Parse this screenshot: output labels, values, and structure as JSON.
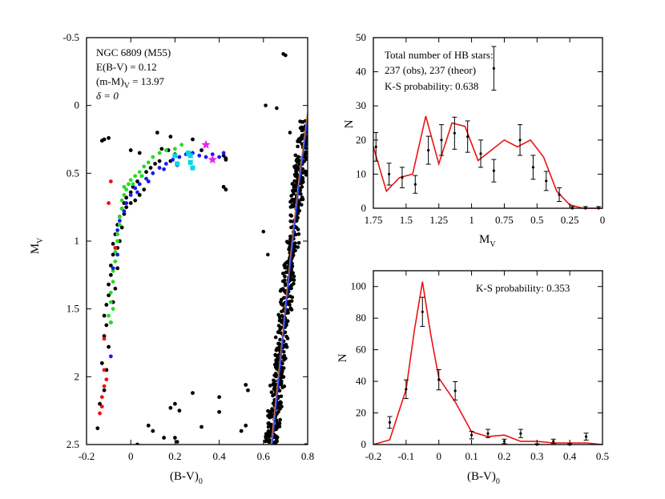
{
  "chart_data": [
    {
      "id": "cmd",
      "type": "scatter",
      "xlabel": "(B-V)",
      "xlabel_sub": "0",
      "ylabel": "M",
      "ylabel_sub": "V",
      "xlim": [
        -0.2,
        0.8
      ],
      "ylim": [
        2.5,
        -0.5
      ],
      "y_inverted": true,
      "xticks": [
        -0.2,
        0,
        0.2,
        0.4,
        0.6,
        0.8
      ],
      "xtick_labels": [
        "-0.2",
        "0",
        "0.2",
        "0.4",
        "0.6",
        "0.8"
      ],
      "yticks": [
        -0.5,
        0,
        0.5,
        1,
        1.5,
        2,
        2.5
      ],
      "ytick_labels": [
        "-0.5",
        "0",
        "0.5",
        "1",
        "1.5",
        "2",
        "2.5"
      ],
      "annotation_lines": [
        "NGC 6809 (M55)",
        "E(B-V)  = 0.12",
        "(m-M)",
        "V",
        " = 13.97",
        "δ = 0"
      ],
      "colors": {
        "black": "#000000",
        "green": "#22dd22",
        "blue": "#1a1aee",
        "red": "#ee1111",
        "cyan": "#00d8e8",
        "magenta": "#ee22ee",
        "track_orange": "#e0782a",
        "track_blue": "#2244ff"
      },
      "series": [
        {
          "name": "HB black",
          "color": "black",
          "points": [
            [
              -0.12,
              1.7
            ],
            [
              -0.11,
              1.62
            ],
            [
              -0.12,
              1.55
            ],
            [
              -0.11,
              1.47
            ],
            [
              -0.1,
              1.4
            ],
            [
              -0.1,
              1.32
            ],
            [
              -0.09,
              1.25
            ],
            [
              -0.09,
              1.18
            ],
            [
              -0.08,
              1.1
            ],
            [
              -0.08,
              1.02
            ],
            [
              -0.07,
              0.95
            ],
            [
              -0.06,
              0.88
            ],
            [
              -0.05,
              0.82
            ],
            [
              -0.04,
              0.76
            ],
            [
              -0.03,
              0.72
            ],
            [
              -0.02,
              0.68
            ],
            [
              0.0,
              0.64
            ],
            [
              0.01,
              0.6
            ],
            [
              0.03,
              0.56
            ],
            [
              0.05,
              0.52
            ],
            [
              0.07,
              0.49
            ],
            [
              0.09,
              0.46
            ],
            [
              0.11,
              0.43
            ],
            [
              0.13,
              0.41
            ],
            [
              -0.03,
              0.8
            ],
            [
              -0.02,
              0.75
            ],
            [
              0.0,
              0.72
            ],
            [
              0.02,
              0.7
            ],
            [
              0.04,
              0.66
            ],
            [
              0.06,
              0.62
            ],
            [
              -0.09,
              1.6
            ],
            [
              -0.08,
              1.45
            ],
            [
              -0.07,
              1.35
            ],
            [
              -0.06,
              1.2
            ],
            [
              -0.05,
              1.0
            ],
            [
              -0.06,
              1.05
            ],
            [
              -0.04,
              0.9
            ],
            [
              0.14,
              0.32
            ],
            [
              0.17,
              0.33
            ],
            [
              0.2,
              0.36
            ],
            [
              0.18,
              0.41
            ],
            [
              0.43,
              0.4
            ],
            [
              0.42,
              0.6
            ],
            [
              0.43,
              0.62
            ],
            [
              0.32,
              0.33
            ],
            [
              -0.11,
              1.95
            ],
            [
              -0.12,
              2.1
            ],
            [
              -0.14,
              2.2
            ],
            [
              -0.15,
              2.38
            ],
            [
              -0.1,
              1.78
            ],
            [
              -0.13,
              1.9
            ],
            [
              0.2,
              2.2
            ],
            [
              0.18,
              2.23
            ],
            [
              0.22,
              2.25
            ],
            [
              0.15,
              2.45
            ],
            [
              0.2,
              2.45
            ],
            [
              0.21,
              2.48
            ],
            [
              0.32,
              2.37
            ],
            [
              0.28,
              2.12
            ],
            [
              0.4,
              2.15
            ],
            [
              0.52,
              2.06
            ],
            [
              0.53,
              2.1
            ],
            [
              0.52,
              2.36
            ],
            [
              0.4,
              2.26
            ],
            [
              0.1,
              2.4
            ],
            [
              0.08,
              2.36
            ],
            [
              0.03,
              2.5
            ],
            [
              0.5,
              2.4
            ],
            [
              -0.12,
              0.25
            ],
            [
              -0.13,
              0.26
            ],
            [
              -0.1,
              0.24
            ],
            [
              0.18,
              0.23
            ],
            [
              0.12,
              0.2
            ],
            [
              0.0,
              0.33
            ],
            [
              0.04,
              0.35
            ],
            [
              0.42,
              0.37
            ],
            [
              0.43,
              0.39
            ],
            [
              0.28,
              0.25
            ]
          ]
        },
        {
          "name": "HB green",
          "color": "green",
          "points": [
            [
              -0.09,
              1.45
            ],
            [
              -0.09,
              1.38
            ],
            [
              -0.08,
              1.3
            ],
            [
              -0.08,
              1.22
            ],
            [
              -0.07,
              1.15
            ],
            [
              -0.07,
              1.08
            ],
            [
              -0.06,
              1.0
            ],
            [
              -0.06,
              0.95
            ],
            [
              -0.05,
              0.88
            ],
            [
              -0.05,
              0.82
            ],
            [
              -0.04,
              0.76
            ],
            [
              -0.04,
              0.7
            ],
            [
              -0.03,
              0.66
            ],
            [
              -0.02,
              0.62
            ],
            [
              -0.01,
              0.58
            ],
            [
              0.0,
              0.55
            ],
            [
              0.02,
              0.52
            ],
            [
              0.04,
              0.49
            ],
            [
              0.06,
              0.45
            ],
            [
              0.08,
              0.42
            ],
            [
              0.1,
              0.38
            ],
            [
              0.13,
              0.35
            ],
            [
              0.16,
              0.33
            ],
            [
              0.2,
              0.32
            ],
            [
              0.23,
              0.29
            ],
            [
              -0.1,
              1.55
            ],
            [
              -0.09,
              1.6
            ],
            [
              -0.08,
              1.5
            ],
            [
              -0.03,
              0.6
            ],
            [
              0.01,
              0.58
            ],
            [
              0.05,
              0.52
            ]
          ]
        },
        {
          "name": "HB blue",
          "color": "blue",
          "points": [
            [
              -0.08,
              1.2
            ],
            [
              -0.07,
              1.05
            ],
            [
              -0.06,
              0.92
            ],
            [
              -0.05,
              0.85
            ],
            [
              -0.03,
              0.78
            ],
            [
              -0.02,
              0.72
            ],
            [
              0.0,
              0.66
            ],
            [
              0.02,
              0.61
            ],
            [
              0.04,
              0.58
            ],
            [
              0.07,
              0.54
            ],
            [
              0.1,
              0.5
            ],
            [
              0.13,
              0.46
            ],
            [
              0.16,
              0.43
            ],
            [
              0.19,
              0.4
            ],
            [
              0.22,
              0.38
            ],
            [
              0.25,
              0.36
            ],
            [
              0.28,
              0.35
            ],
            [
              0.31,
              0.37
            ],
            [
              0.34,
              0.38
            ],
            [
              0.37,
              0.36
            ],
            [
              0.4,
              0.38
            ],
            [
              0.42,
              0.35
            ],
            [
              -0.09,
              1.85
            ],
            [
              -0.06,
              1.1
            ],
            [
              0.03,
              0.64
            ],
            [
              0.08,
              0.56
            ],
            [
              0.15,
              0.47
            ],
            [
              0.21,
              0.44
            ]
          ]
        },
        {
          "name": "HB red",
          "color": "red",
          "points": [
            [
              -0.12,
              1.72
            ],
            [
              -0.12,
              1.95
            ],
            [
              -0.11,
              2.02
            ],
            [
              -0.12,
              2.07
            ],
            [
              -0.13,
              2.15
            ],
            [
              -0.13,
              2.22
            ],
            [
              -0.14,
              2.27
            ],
            [
              -0.07,
              1.05
            ],
            [
              -0.1,
              0.72
            ],
            [
              -0.09,
              0.56
            ]
          ]
        },
        {
          "name": "HB cyan",
          "color": "cyan",
          "points": [
            [
              0.26,
              0.35
            ],
            [
              0.27,
              0.37
            ],
            [
              0.27,
              0.42
            ],
            [
              0.28,
              0.46
            ],
            [
              0.2,
              0.37
            ],
            [
              0.21,
              0.43
            ]
          ]
        },
        {
          "name": "HB magenta stars",
          "color": "magenta",
          "marker": "star",
          "points": [
            [
              0.34,
              0.29
            ],
            [
              0.37,
              0.4
            ]
          ]
        }
      ],
      "tracks": [
        {
          "name": "isochrone orange",
          "color": "track_orange",
          "x": [
            0.635,
            0.68,
            0.72,
            0.76,
            0.8
          ],
          "y": [
            2.5,
            1.8,
            1.15,
            0.55,
            0.05
          ]
        },
        {
          "name": "isochrone blue",
          "color": "track_blue",
          "x": [
            0.64,
            0.68,
            0.72,
            0.76,
            0.8
          ],
          "y": [
            2.5,
            1.85,
            1.2,
            0.6,
            0.1
          ]
        }
      ]
    },
    {
      "id": "hist_mv",
      "type": "line",
      "xlabel": "M",
      "xlabel_sub": "V",
      "ylabel": "N",
      "xlim": [
        1.75,
        0
      ],
      "ylim": [
        0,
        50
      ],
      "xticks": [
        1.75,
        1.5,
        1.25,
        1,
        0.75,
        0.5,
        0.25,
        0
      ],
      "xtick_labels": [
        "1.75",
        "1.5",
        "1.25",
        "1",
        "0.75",
        "0.5",
        "0.25",
        "0"
      ],
      "yticks": [
        0,
        10,
        20,
        30,
        40,
        50
      ],
      "ytick_labels": [
        "0",
        "10",
        "20",
        "30",
        "40",
        "50"
      ],
      "annotation_lines": [
        "Total number of HB stars:",
        "237 (obs), 237 (theor)",
        "K-S probability: 0.638"
      ],
      "theory": {
        "x": [
          1.75,
          1.65,
          1.55,
          1.45,
          1.35,
          1.25,
          1.15,
          1.05,
          0.95,
          0.85,
          0.75,
          0.65,
          0.55,
          0.45,
          0.35,
          0.25,
          0.15,
          0.05,
          0
        ],
        "y": [
          18,
          5,
          9,
          10,
          27,
          13,
          25,
          24,
          14,
          17,
          20,
          18,
          20,
          15,
          5,
          1,
          0,
          0,
          0
        ]
      },
      "observed": [
        {
          "x": 1.73,
          "y": 18,
          "err": 4.2
        },
        {
          "x": 1.63,
          "y": 10,
          "err": 3.2
        },
        {
          "x": 1.53,
          "y": 9,
          "err": 3.0
        },
        {
          "x": 1.43,
          "y": 7,
          "err": 2.6
        },
        {
          "x": 1.33,
          "y": 17,
          "err": 4.1
        },
        {
          "x": 1.23,
          "y": 20,
          "err": 4.5
        },
        {
          "x": 1.13,
          "y": 22,
          "err": 4.7
        },
        {
          "x": 1.03,
          "y": 21,
          "err": 4.6
        },
        {
          "x": 0.93,
          "y": 16,
          "err": 4.0
        },
        {
          "x": 0.83,
          "y": 11,
          "err": 3.3
        },
        {
          "x": 0.63,
          "y": 20,
          "err": 4.5
        },
        {
          "x": 0.53,
          "y": 12,
          "err": 3.5
        },
        {
          "x": 0.43,
          "y": 8,
          "err": 2.8
        },
        {
          "x": 0.33,
          "y": 4,
          "err": 2.0
        },
        {
          "x": 0.23,
          "y": 0,
          "err": 0.5
        },
        {
          "x": 0.13,
          "y": 0,
          "err": 0.5
        },
        {
          "x": 0.03,
          "y": 0,
          "err": 0.5
        },
        {
          "x": 0.83,
          "y": 41,
          "err": 6.4
        }
      ]
    },
    {
      "id": "hist_bv",
      "type": "line",
      "xlabel": "(B-V)",
      "xlabel_sub": "0",
      "ylabel": "N",
      "xlim": [
        -0.2,
        0.5
      ],
      "ylim": [
        0,
        110
      ],
      "xticks": [
        -0.2,
        -0.1,
        0,
        0.1,
        0.2,
        0.3,
        0.4,
        0.5
      ],
      "xtick_labels": [
        "-0.2",
        "-0.1",
        "0",
        "0.1",
        "0.2",
        "0.3",
        "0.4",
        "0.5"
      ],
      "yticks": [
        0,
        20,
        40,
        60,
        80,
        100
      ],
      "ytick_labels": [
        "0",
        "20",
        "40",
        "60",
        "80",
        "100"
      ],
      "annotation_lines": [
        "K-S probability: 0.353"
      ],
      "theory": {
        "x": [
          -0.2,
          -0.15,
          -0.1,
          -0.075,
          -0.05,
          -0.025,
          0.0,
          0.05,
          0.1,
          0.15,
          0.2,
          0.25,
          0.3,
          0.35,
          0.4,
          0.45,
          0.5
        ],
        "y": [
          0,
          3,
          35,
          72,
          103,
          70,
          42,
          27,
          8,
          5,
          6,
          2,
          2,
          1,
          1,
          1,
          0
        ]
      },
      "observed": [
        {
          "x": -0.15,
          "y": 14,
          "err": 3.7
        },
        {
          "x": -0.1,
          "y": 35,
          "err": 5.9
        },
        {
          "x": -0.05,
          "y": 84,
          "err": 9.2
        },
        {
          "x": 0.0,
          "y": 41,
          "err": 6.4
        },
        {
          "x": 0.05,
          "y": 34,
          "err": 5.8
        },
        {
          "x": 0.1,
          "y": 6,
          "err": 2.4
        },
        {
          "x": 0.15,
          "y": 7,
          "err": 2.6
        },
        {
          "x": 0.2,
          "y": 2,
          "err": 1.4
        },
        {
          "x": 0.25,
          "y": 7,
          "err": 2.6
        },
        {
          "x": 0.3,
          "y": 0,
          "err": 0.5
        },
        {
          "x": 0.35,
          "y": 2,
          "err": 1.4
        },
        {
          "x": 0.4,
          "y": 0,
          "err": 0.5
        },
        {
          "x": 0.45,
          "y": 5,
          "err": 2.2
        }
      ]
    }
  ]
}
